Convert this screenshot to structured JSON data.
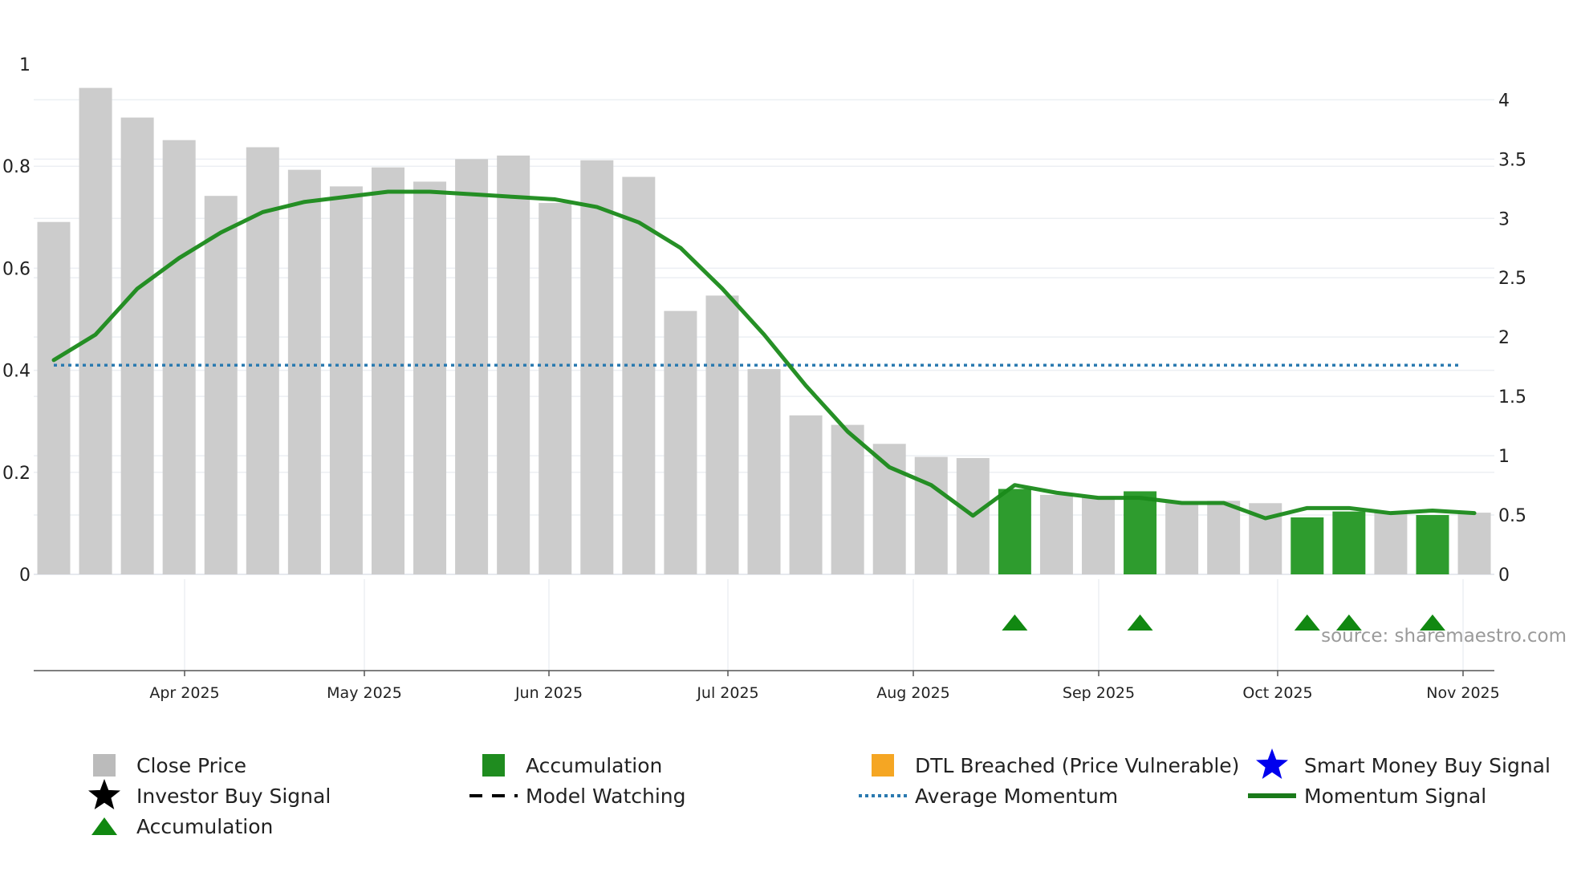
{
  "chart_data": {
    "type": "bar",
    "title": "",
    "source": "source: sharemaestro.com",
    "x_labels": [
      "Apr 2025",
      "May 2025",
      "Jun 2025",
      "Jul 2025",
      "Aug 2025",
      "Sep 2025",
      "Oct 2025",
      "Nov 2025"
    ],
    "left_axis": {
      "ticks": [
        "0",
        "0.2",
        "0.4",
        "0.6",
        "0.8",
        "1"
      ],
      "ylim": [
        0,
        1
      ]
    },
    "right_axis": {
      "ticks": [
        "0",
        "0.5",
        "1",
        "1.5",
        "2",
        "2.5",
        "3",
        "3.5",
        "4"
      ],
      "ylim": [
        0,
        4.3
      ]
    },
    "bars": {
      "name": "Close Price",
      "values": [
        2.97,
        4.1,
        3.85,
        3.66,
        3.19,
        3.6,
        3.41,
        3.27,
        3.43,
        3.31,
        3.5,
        3.53,
        3.13,
        3.49,
        3.35,
        2.22,
        2.35,
        1.73,
        1.34,
        1.26,
        1.1,
        0.99,
        0.98,
        0.72,
        0.67,
        0.65,
        0.7,
        0.6,
        0.62,
        0.6,
        0.48,
        0.53,
        0.53,
        0.5,
        0.52
      ],
      "accumulation": [
        false,
        false,
        false,
        false,
        false,
        false,
        false,
        false,
        false,
        false,
        false,
        false,
        false,
        false,
        false,
        false,
        false,
        false,
        false,
        false,
        false,
        false,
        false,
        true,
        false,
        false,
        true,
        false,
        false,
        false,
        true,
        true,
        false,
        true,
        false
      ]
    },
    "momentum": {
      "name": "Momentum Signal",
      "values": [
        0.42,
        0.47,
        0.56,
        0.62,
        0.67,
        0.71,
        0.73,
        0.74,
        0.75,
        0.75,
        0.745,
        0.74,
        0.735,
        0.72,
        0.69,
        0.64,
        0.56,
        0.47,
        0.37,
        0.28,
        0.21,
        0.175,
        0.115,
        0.175,
        0.16,
        0.15,
        0.15,
        0.14,
        0.14,
        0.11,
        0.13,
        0.13,
        0.12,
        0.125,
        0.12
      ]
    },
    "average_momentum": {
      "name": "Average Momentum",
      "value": 0.41
    },
    "accumulation_markers": [
      23,
      26,
      30,
      31,
      33
    ],
    "legend": [
      {
        "label": "Close Price",
        "symbol": "square",
        "color": "#bbbbbb"
      },
      {
        "label": "Accumulation",
        "symbol": "square",
        "color": "#1f8c1f"
      },
      {
        "label": "DTL Breached (Price Vulnerable)",
        "symbol": "square",
        "color": "#f5a623"
      },
      {
        "label": "Smart Money Buy Signal",
        "symbol": "star",
        "color": "#0000ee"
      },
      {
        "label": "Investor Buy Signal",
        "symbol": "star",
        "color": "#000000"
      },
      {
        "label": "Model Watching",
        "symbol": "dash",
        "color": "#000000"
      },
      {
        "label": "Average Momentum",
        "symbol": "dotted",
        "color": "#2a7ab0"
      },
      {
        "label": "Momentum Signal",
        "symbol": "line",
        "color": "#1a7a1a"
      },
      {
        "label": "Accumulation",
        "symbol": "triangle",
        "color": "#118811"
      }
    ],
    "colors": {
      "bar": "#cccccc",
      "accumulation_bar": "#2e9c2e",
      "momentum": "#1a8a1a",
      "average": "#2a7ab0",
      "triangle": "#118811"
    }
  }
}
